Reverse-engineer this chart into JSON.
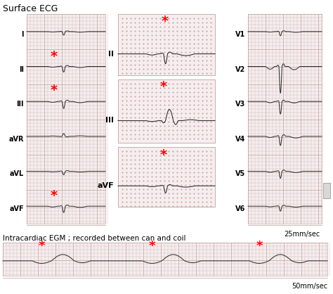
{
  "title_top": "Surface ECG",
  "title_bottom": "Intracardiac EGM ; recorded between can and coil",
  "speed_right": "25mm/sec",
  "speed_bottom": "50mm/sec",
  "bg_color": "#ffffff",
  "grid_color": "#ccaaaa",
  "ecg_color": "#333333",
  "asterisk_color": "red",
  "labels_left": [
    "I",
    "II",
    "III",
    "aVR",
    "aVL",
    "aVF"
  ],
  "labels_middle": [
    "II",
    "III",
    "aVF"
  ],
  "labels_right": [
    "V1",
    "V2",
    "V3",
    "V4",
    "V5",
    "V6"
  ],
  "panel_bg": "#f5eeee",
  "dot_color": "#cc9999"
}
